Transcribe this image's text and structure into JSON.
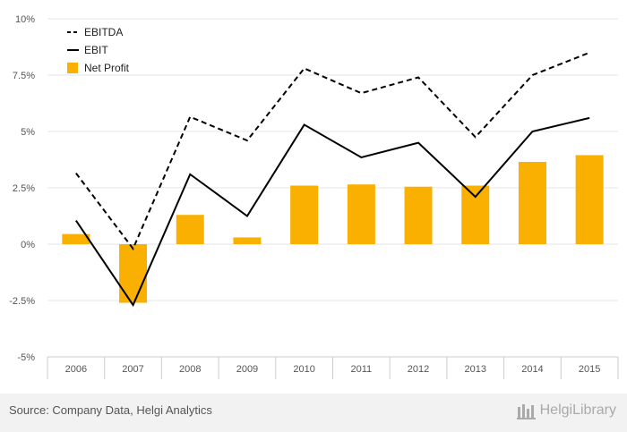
{
  "chart_data": {
    "type": "bar",
    "categories": [
      "2006",
      "2007",
      "2008",
      "2009",
      "2010",
      "2011",
      "2012",
      "2013",
      "2014",
      "2015"
    ],
    "series": [
      {
        "name": "EBITDA",
        "kind": "line",
        "style": "dashed",
        "color": "#000000",
        "values": [
          3.15,
          -0.2,
          5.65,
          4.6,
          7.8,
          6.7,
          7.4,
          4.75,
          7.5,
          8.5
        ]
      },
      {
        "name": "EBIT",
        "kind": "line",
        "style": "solid",
        "color": "#000000",
        "values": [
          1.05,
          -2.7,
          3.1,
          1.25,
          5.3,
          3.85,
          4.5,
          2.1,
          5.0,
          5.6
        ]
      },
      {
        "name": "Net Profit",
        "kind": "bar",
        "color": "#f9b000",
        "values": [
          0.45,
          -2.6,
          1.3,
          0.3,
          2.6,
          2.65,
          2.55,
          2.6,
          3.65,
          3.95
        ]
      }
    ],
    "ylim": [
      -5,
      10
    ],
    "yticks": [
      10,
      7.5,
      5,
      2.5,
      0,
      -2.5,
      -5
    ],
    "ytick_labels": [
      "10%",
      "7.5%",
      "5%",
      "2.5%",
      "0%",
      "-2.5%",
      "-5%"
    ],
    "grid": true,
    "legend_position": "top-left"
  },
  "footer": {
    "source": "Source: Company Data, Helgi Analytics",
    "brand": "HelgiLibrary"
  },
  "colors": {
    "bar": "#f9b000",
    "grid": "#e6e6e6",
    "axis": "#cccccc",
    "footer_bg": "#f2f2f2"
  }
}
